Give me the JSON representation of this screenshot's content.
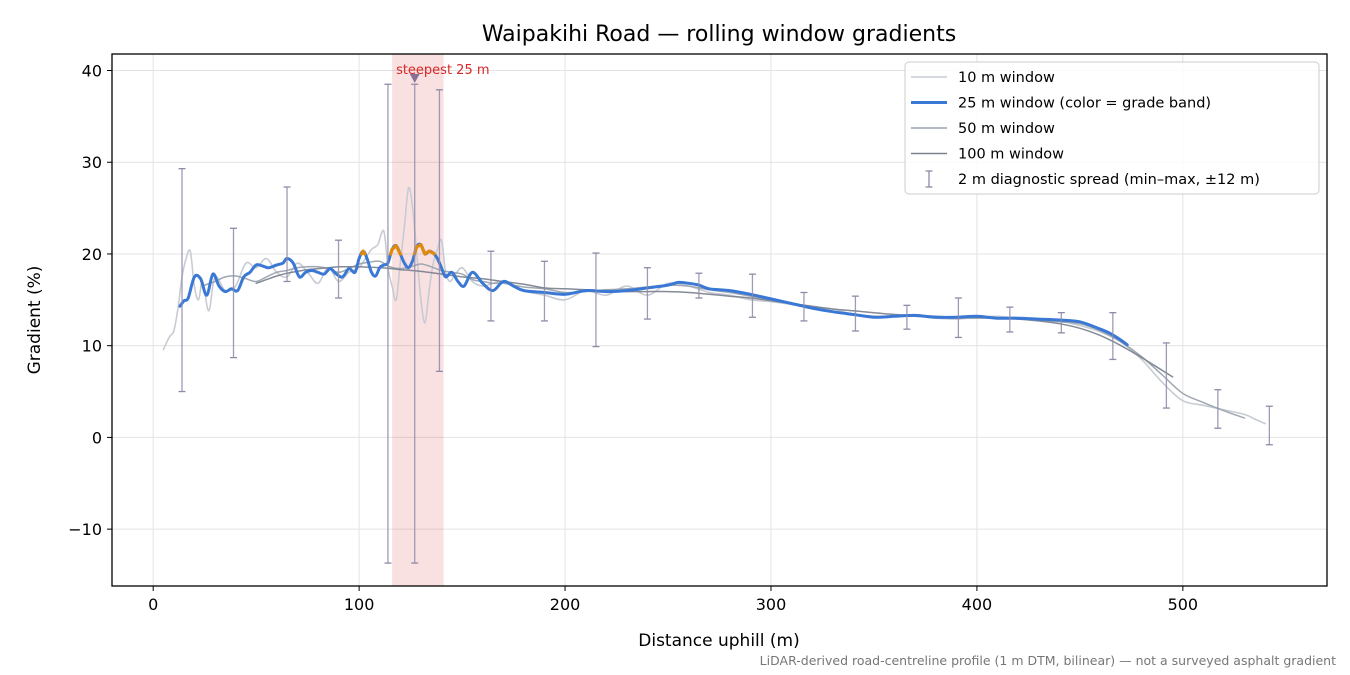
{
  "chart_data": {
    "type": "line",
    "title": "Waipakihi Road — rolling window gradients",
    "xlabel": "Distance uphill (m)",
    "ylabel": "Gradient (%)",
    "xlim": [
      -20,
      570
    ],
    "ylim": [
      -16.2,
      41.8
    ],
    "xticks": [
      0,
      100,
      200,
      300,
      400,
      500
    ],
    "yticks": [
      -10,
      0,
      10,
      20,
      30,
      40
    ],
    "ytick_labels": [
      "−10",
      "0",
      "10",
      "20",
      "30",
      "40"
    ],
    "grid": true,
    "legend_position": "top-right",
    "footnote": "LiDAR-derived road-centreline profile (1 m DTM, bilinear) — not a surveyed asphalt gradient",
    "highlight": {
      "x_range": [
        116,
        141
      ],
      "label": "steepest 25 m",
      "marker": [
        127,
        39.2
      ],
      "color": "#d62728"
    },
    "series": [
      {
        "name": "10 m window",
        "color": "#c7ccd3",
        "x": [
          5,
          8,
          10,
          12,
          14,
          16,
          18,
          20,
          22,
          24,
          27,
          30,
          35,
          40,
          45,
          50,
          55,
          60,
          65,
          70,
          75,
          80,
          85,
          90,
          95,
          100,
          103,
          106,
          109,
          112,
          114,
          116,
          118,
          120,
          122,
          124,
          126,
          128,
          130,
          132,
          134,
          136,
          138,
          140,
          142,
          144,
          146,
          150,
          155,
          160,
          165,
          170,
          180,
          190,
          200,
          210,
          220,
          230,
          240,
          250,
          260,
          270,
          280,
          290,
          300,
          310,
          320,
          330,
          340,
          350,
          360,
          370,
          380,
          390,
          400,
          410,
          420,
          430,
          440,
          450,
          460,
          470,
          480,
          490,
          500,
          510,
          520,
          530,
          535,
          540
        ],
        "values": [
          9.6,
          11.0,
          11.6,
          14.0,
          17.5,
          19.5,
          20.3,
          16.5,
          15.0,
          17.0,
          13.8,
          17.5,
          16.0,
          16.5,
          19.0,
          18.5,
          19.5,
          18.0,
          17.5,
          19.0,
          18.0,
          16.8,
          18.5,
          17.0,
          18.0,
          18.5,
          19.5,
          20.5,
          21.0,
          22.5,
          18.5,
          16.5,
          15.0,
          19.0,
          23.0,
          27.2,
          25.0,
          20.0,
          15.0,
          12.5,
          16.0,
          19.0,
          20.5,
          21.5,
          18.0,
          17.0,
          17.5,
          18.5,
          17.0,
          16.5,
          16.8,
          17.0,
          16.0,
          15.5,
          15.0,
          16.0,
          15.5,
          16.5,
          15.5,
          16.8,
          16.5,
          15.8,
          15.5,
          15.0,
          14.8,
          14.5,
          14.2,
          14.0,
          13.4,
          13.1,
          13.3,
          13.2,
          13.0,
          12.9,
          13.1,
          13.2,
          13.0,
          12.9,
          12.7,
          12.2,
          11.5,
          10.4,
          8.5,
          6.0,
          4.0,
          3.5,
          3.0,
          2.5,
          2.0,
          1.5
        ]
      },
      {
        "name": "25 m window (color = grade band)",
        "color": "#3a78d6",
        "band_colors": {
          "under 20%": "#3a78d6",
          "20% and over": "#e08a0b"
        },
        "x": [
          13,
          15,
          17,
          20,
          23,
          26,
          29,
          32,
          35,
          38,
          41,
          44,
          47,
          50,
          53,
          56,
          60,
          63,
          65,
          68,
          71,
          74,
          77,
          80,
          83,
          86,
          89,
          92,
          95,
          98,
          100,
          102,
          104,
          106,
          108,
          110,
          112,
          114,
          116,
          118,
          120,
          122,
          124,
          126,
          128,
          130,
          132,
          134,
          136,
          138,
          140,
          142,
          145,
          148,
          151,
          155,
          160,
          165,
          170,
          175,
          180,
          190,
          200,
          210,
          220,
          230,
          240,
          250,
          255,
          260,
          265,
          270,
          280,
          290,
          300,
          310,
          320,
          330,
          340,
          350,
          360,
          370,
          380,
          390,
          400,
          410,
          420,
          430,
          440,
          450,
          460,
          465,
          470,
          473
        ],
        "values": [
          14.3,
          14.9,
          15.2,
          17.5,
          17.3,
          15.5,
          17.8,
          16.5,
          15.9,
          16.2,
          16.0,
          17.5,
          18.0,
          18.8,
          18.7,
          18.5,
          18.8,
          19.0,
          19.5,
          19.0,
          17.5,
          18.0,
          18.2,
          18.0,
          17.8,
          18.4,
          17.8,
          17.5,
          18.4,
          18.0,
          19.5,
          20.3,
          19.4,
          18.0,
          17.6,
          18.5,
          18.8,
          19.0,
          20.5,
          20.9,
          20.0,
          19.0,
          18.5,
          19.3,
          20.8,
          21.0,
          20.0,
          20.3,
          20.1,
          19.5,
          18.5,
          17.5,
          18.0,
          17.0,
          16.5,
          18.0,
          16.8,
          16.0,
          17.0,
          16.5,
          16.0,
          15.8,
          15.6,
          16.0,
          15.9,
          16.0,
          16.3,
          16.6,
          16.9,
          16.8,
          16.6,
          16.2,
          16.0,
          15.6,
          15.1,
          14.6,
          14.1,
          13.7,
          13.4,
          13.1,
          13.2,
          13.3,
          13.1,
          13.1,
          13.2,
          13.0,
          13.0,
          12.9,
          12.8,
          12.6,
          11.8,
          11.3,
          10.6,
          10.1
        ]
      },
      {
        "name": "50 m window",
        "color": "#9aa3ae",
        "x": [
          25,
          30,
          35,
          40,
          45,
          50,
          55,
          60,
          65,
          70,
          75,
          80,
          85,
          90,
          95,
          100,
          105,
          110,
          115,
          120,
          125,
          130,
          135,
          140,
          145,
          150,
          155,
          160,
          165,
          170,
          180,
          190,
          200,
          210,
          220,
          230,
          240,
          250,
          260,
          270,
          280,
          290,
          300,
          310,
          320,
          330,
          340,
          350,
          360,
          370,
          380,
          390,
          400,
          410,
          420,
          430,
          440,
          450,
          460,
          470,
          480,
          490,
          500,
          510,
          520,
          530
        ],
        "values": [
          16.6,
          17.0,
          17.5,
          17.6,
          17.3,
          17.0,
          17.5,
          18.0,
          18.2,
          18.5,
          18.6,
          18.6,
          18.4,
          18.0,
          18.4,
          18.9,
          19.1,
          19.2,
          18.6,
          18.4,
          18.6,
          18.9,
          18.6,
          18.2,
          18.0,
          17.8,
          17.2,
          17.0,
          16.8,
          16.8,
          16.4,
          16.2,
          15.8,
          15.9,
          16.1,
          16.2,
          16.4,
          16.6,
          16.5,
          16.1,
          15.8,
          15.4,
          15.0,
          14.6,
          14.1,
          13.7,
          13.4,
          13.2,
          13.2,
          13.2,
          13.1,
          13.0,
          13.0,
          13.0,
          12.9,
          12.8,
          12.6,
          12.4,
          11.6,
          10.4,
          8.8,
          6.8,
          4.8,
          3.8,
          2.9,
          2.1
        ]
      },
      {
        "name": "100 m window",
        "color": "#7d8490",
        "x": [
          50,
          55,
          60,
          65,
          70,
          75,
          80,
          85,
          90,
          95,
          100,
          110,
          120,
          130,
          140,
          150,
          160,
          170,
          180,
          190,
          200,
          210,
          220,
          230,
          240,
          250,
          260,
          270,
          280,
          290,
          300,
          310,
          320,
          330,
          340,
          350,
          360,
          370,
          380,
          390,
          400,
          410,
          420,
          430,
          440,
          450,
          460,
          470,
          480,
          490,
          495
        ],
        "values": [
          16.8,
          17.2,
          17.6,
          17.9,
          18.1,
          18.3,
          18.4,
          18.5,
          18.6,
          18.6,
          18.6,
          18.5,
          18.3,
          18.1,
          17.8,
          17.5,
          17.3,
          17.0,
          16.7,
          16.3,
          16.2,
          16.1,
          16.0,
          15.9,
          15.9,
          15.9,
          15.8,
          15.6,
          15.4,
          15.2,
          14.9,
          14.6,
          14.3,
          14.0,
          13.8,
          13.6,
          13.4,
          13.3,
          13.2,
          13.1,
          13.1,
          13.0,
          12.9,
          12.7,
          12.4,
          11.9,
          11.1,
          10.0,
          8.7,
          7.3,
          6.6
        ]
      }
    ],
    "error_bars": {
      "name": "2 m diagnostic spread (min–max, ±12 m)",
      "color": "#8f8aa8",
      "x": [
        14,
        39,
        65,
        90,
        114,
        127,
        139,
        164,
        190,
        215,
        240,
        265,
        291,
        316,
        341,
        366,
        391,
        416,
        441,
        466,
        492,
        517,
        542
      ],
      "center": [
        14.5,
        16.0,
        18.8,
        17.8,
        19.0,
        19.7,
        19.3,
        16.8,
        16.0,
        15.8,
        16.0,
        16.8,
        15.8,
        14.0,
        13.3,
        13.2,
        13.1,
        13.0,
        12.5,
        11.5,
        7.0,
        3.5,
        2.0
      ],
      "low": [
        5.0,
        8.7,
        17.0,
        15.2,
        -13.7,
        -13.7,
        7.2,
        12.7,
        12.7,
        9.9,
        12.9,
        15.2,
        13.1,
        12.7,
        11.6,
        11.8,
        10.9,
        11.5,
        11.4,
        8.5,
        3.2,
        1.0,
        -0.8
      ],
      "high": [
        29.3,
        22.8,
        27.3,
        21.5,
        38.5,
        38.5,
        37.9,
        20.3,
        19.2,
        20.1,
        18.5,
        17.9,
        17.8,
        15.8,
        15.4,
        14.4,
        15.2,
        14.2,
        13.6,
        13.6,
        10.3,
        5.2,
        3.4
      ]
    }
  }
}
